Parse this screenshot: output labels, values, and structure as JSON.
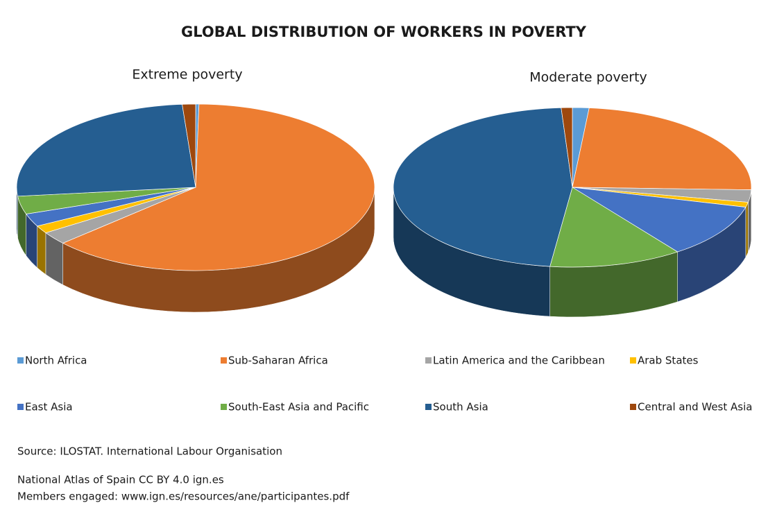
{
  "title": "GLOBAL DISTRIBUTION OF WORKERS IN POVERTY",
  "chart_data": [
    {
      "type": "pie",
      "title": "Extreme poverty",
      "categories": [
        "North Africa",
        "Sub-Saharan Africa",
        "Latin America and the Caribbean",
        "Arab States",
        "East Asia",
        "South-East Asia and Pacific",
        "South Asia",
        "Central and West Asia"
      ],
      "values": [
        0.3,
        63,
        2.5,
        1.5,
        2.5,
        3.5,
        25.5,
        1.2
      ],
      "colors": [
        "#5b9bd5",
        "#ed7d31",
        "#a5a5a5",
        "#ffc000",
        "#4472c4",
        "#70ad47",
        "#255e91",
        "#9e480e"
      ]
    },
    {
      "type": "pie",
      "title": "Moderate poverty",
      "categories": [
        "North Africa",
        "Sub-Saharan Africa",
        "Latin America and the Caribbean",
        "Arab States",
        "East Asia",
        "South-East Asia and Pacific",
        "South Asia",
        "Central and West Asia"
      ],
      "values": [
        1.5,
        24,
        2.5,
        1,
        11,
        12,
        47,
        1
      ],
      "colors": [
        "#5b9bd5",
        "#ed7d31",
        "#a5a5a5",
        "#ffc000",
        "#4472c4",
        "#70ad47",
        "#255e91",
        "#9e480e"
      ]
    }
  ],
  "source": "Source:  ILOSTAT. International Labour Organisation",
  "credits": [
    "National Atlas of Spain CC BY 4.0 ign.es",
    "Members engaged: www.ign.es/resources/ane/participantes.pdf"
  ]
}
